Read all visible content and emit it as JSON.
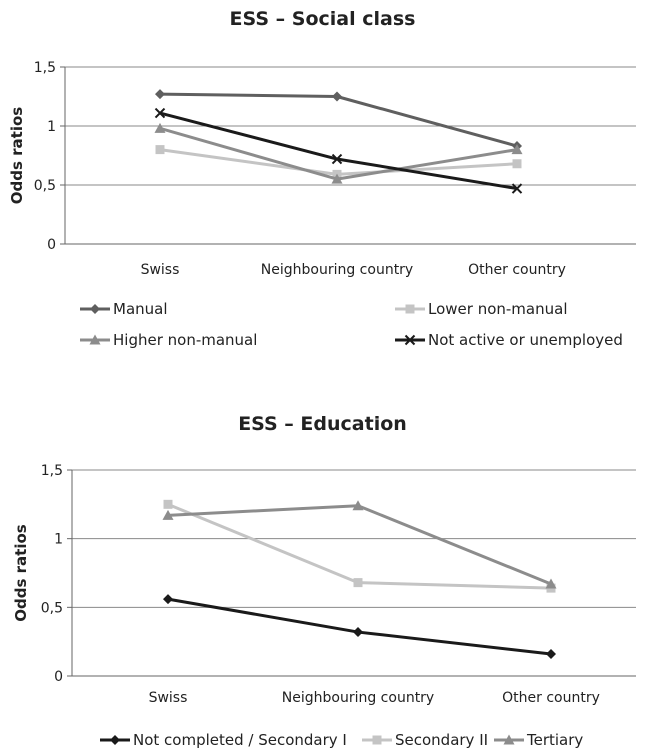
{
  "chart_data": [
    {
      "type": "line",
      "title": "ESS – Social class",
      "xlabel": "",
      "ylabel": "Odds ratios",
      "categories": [
        "Swiss",
        "Neighbouring country",
        "Other country"
      ],
      "ylim": [
        0,
        1.5
      ],
      "yticks": [
        "0",
        "0,5",
        "1",
        "1,5"
      ],
      "grid": true,
      "legend_position": "bottom",
      "series": [
        {
          "name": "Manual",
          "values": [
            1.27,
            1.25,
            0.83
          ],
          "color": "#5f5f5f",
          "marker": "diamond"
        },
        {
          "name": "Lower non-manual",
          "values": [
            0.8,
            0.59,
            0.68
          ],
          "color": "#c4c4c4",
          "marker": "square"
        },
        {
          "name": "Higher non-manual",
          "values": [
            0.98,
            0.55,
            0.8
          ],
          "color": "#8c8c8c",
          "marker": "triangle"
        },
        {
          "name": "Not active or unemployed",
          "values": [
            1.11,
            0.72,
            0.47
          ],
          "color": "#1a1a1a",
          "marker": "x"
        }
      ]
    },
    {
      "type": "line",
      "title": "ESS – Education",
      "xlabel": "",
      "ylabel": "Odds ratios",
      "categories": [
        "Swiss",
        "Neighbouring country",
        "Other country"
      ],
      "ylim": [
        0,
        1.5
      ],
      "yticks": [
        "0",
        "0,5",
        "1",
        "1,5"
      ],
      "grid": true,
      "legend_position": "bottom",
      "series": [
        {
          "name": "Not completed / Secondary I",
          "values": [
            0.56,
            0.32,
            0.16
          ],
          "color": "#1a1a1a",
          "marker": "diamond"
        },
        {
          "name": "Secondary II",
          "values": [
            1.25,
            0.68,
            0.64
          ],
          "color": "#c4c4c4",
          "marker": "square"
        },
        {
          "name": "Tertiary",
          "values": [
            1.17,
            1.24,
            0.67
          ],
          "color": "#8c8c8c",
          "marker": "triangle"
        }
      ]
    }
  ]
}
